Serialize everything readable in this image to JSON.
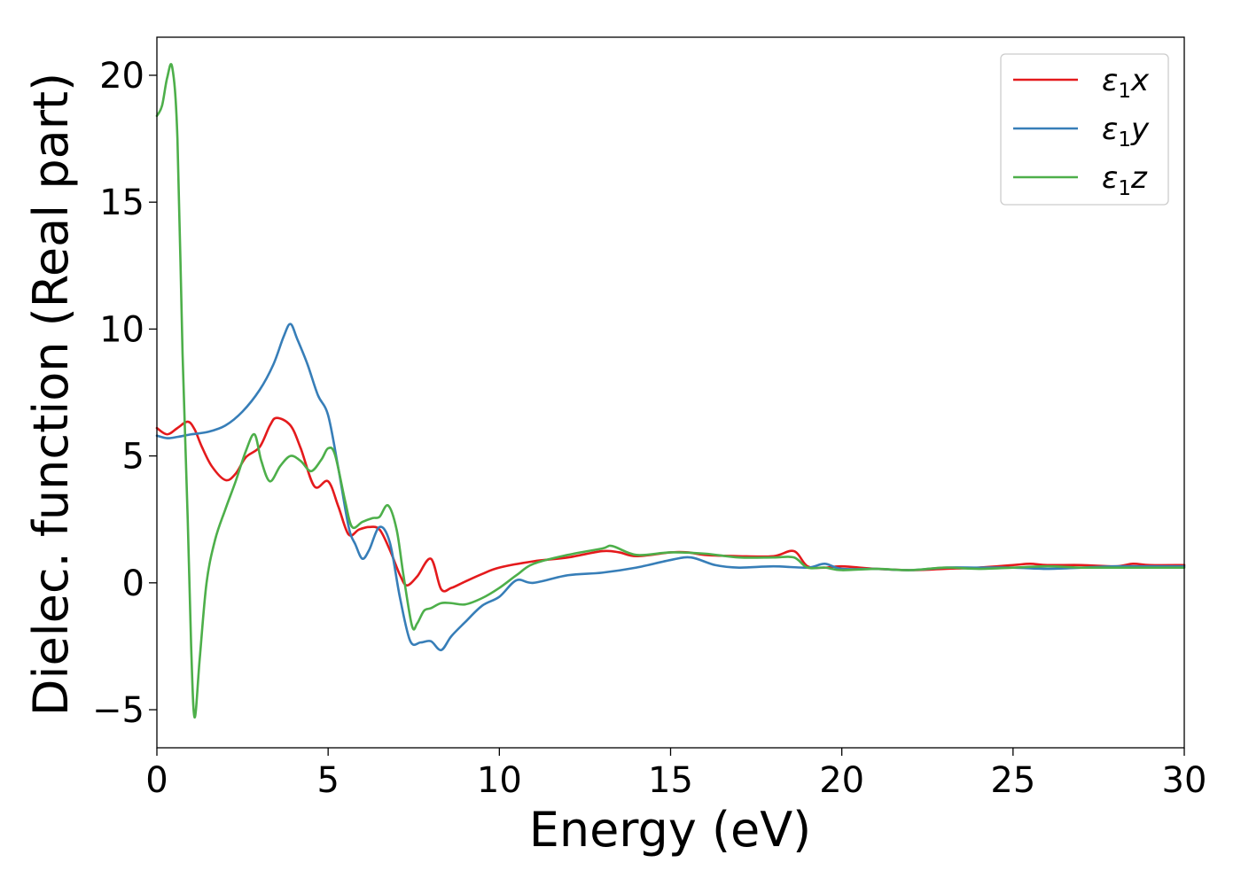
{
  "chart_data": {
    "type": "line",
    "title": "",
    "xlabel": "Energy (eV)",
    "ylabel": "Dielec. function (Real part)",
    "xlim": [
      0,
      30
    ],
    "ylim": [
      -6.5,
      21.5
    ],
    "xticks": [
      0,
      5,
      10,
      15,
      20,
      25,
      30
    ],
    "xtick_labels": [
      "0",
      "5",
      "10",
      "15",
      "20",
      "25",
      "30"
    ],
    "yticks": [
      -5,
      0,
      5,
      10,
      15,
      20
    ],
    "ytick_labels": [
      "−5",
      "0",
      "5",
      "10",
      "15",
      "20"
    ],
    "grid": false,
    "legend_position": "top-right",
    "series": [
      {
        "name": "ε₁x",
        "legend_label": {
          "main": "ε",
          "sub": "1",
          "tail": "x"
        },
        "color": "#e41a1c",
        "x": [
          0,
          0.3,
          0.6,
          0.9,
          1.1,
          1.3,
          1.6,
          2.0,
          2.3,
          2.6,
          3.0,
          3.3,
          3.5,
          3.9,
          4.2,
          4.6,
          5.0,
          5.3,
          5.6,
          5.9,
          6.2,
          6.5,
          6.8,
          7.1,
          7.3,
          7.6,
          8.0,
          8.3,
          8.6,
          9.0,
          9.5,
          10.0,
          11.0,
          12.0,
          13.0,
          13.5,
          14.0,
          15.0,
          15.5,
          16.0,
          17.0,
          18.0,
          18.6,
          19.0,
          19.5,
          20.0,
          21.0,
          22.0,
          23.0,
          24.0,
          25.0,
          25.5,
          26.0,
          27.0,
          28.0,
          28.5,
          29.0,
          30.0
        ],
        "y": [
          6.1,
          5.85,
          6.1,
          6.35,
          6.05,
          5.4,
          4.6,
          4.05,
          4.3,
          4.95,
          5.35,
          6.2,
          6.5,
          6.2,
          5.3,
          3.8,
          4.0,
          3.0,
          1.9,
          2.1,
          2.2,
          2.1,
          1.3,
          0.3,
          -0.1,
          0.25,
          0.95,
          -0.25,
          -0.2,
          0.05,
          0.35,
          0.6,
          0.85,
          1.0,
          1.25,
          1.2,
          1.05,
          1.2,
          1.2,
          1.1,
          1.05,
          1.05,
          1.25,
          0.65,
          0.6,
          0.65,
          0.55,
          0.5,
          0.55,
          0.6,
          0.7,
          0.75,
          0.7,
          0.7,
          0.65,
          0.75,
          0.7,
          0.7
        ]
      },
      {
        "name": "ε₁y",
        "legend_label": {
          "main": "ε",
          "sub": "1",
          "tail": "y"
        },
        "color": "#377eb8",
        "x": [
          0,
          0.3,
          0.6,
          1.0,
          1.5,
          2.0,
          2.5,
          3.0,
          3.4,
          3.7,
          3.9,
          4.1,
          4.4,
          4.7,
          5.0,
          5.3,
          5.6,
          5.8,
          6.0,
          6.2,
          6.5,
          6.8,
          7.1,
          7.4,
          7.7,
          8.0,
          8.3,
          8.6,
          9.0,
          9.5,
          10.0,
          10.5,
          11.0,
          12.0,
          13.0,
          14.0,
          15.0,
          15.6,
          16.3,
          17.0,
          18.0,
          19.0,
          19.5,
          20.0,
          21.0,
          22.0,
          23.0,
          24.0,
          25.0,
          26.0,
          27.0,
          28.0,
          29.0,
          30.0
        ],
        "y": [
          5.8,
          5.7,
          5.75,
          5.85,
          5.95,
          6.2,
          6.75,
          7.6,
          8.6,
          9.7,
          10.2,
          9.6,
          8.6,
          7.4,
          6.6,
          4.5,
          2.2,
          1.5,
          0.95,
          1.3,
          2.2,
          1.6,
          -0.6,
          -2.3,
          -2.35,
          -2.3,
          -2.65,
          -2.1,
          -1.55,
          -0.9,
          -0.55,
          0.1,
          0.0,
          0.3,
          0.4,
          0.6,
          0.9,
          1.0,
          0.7,
          0.6,
          0.65,
          0.6,
          0.75,
          0.55,
          0.55,
          0.5,
          0.6,
          0.6,
          0.6,
          0.55,
          0.6,
          0.65,
          0.65,
          0.65
        ]
      },
      {
        "name": "ε₁z",
        "legend_label": {
          "main": "ε",
          "sub": "1",
          "tail": "z"
        },
        "color": "#4daf4a",
        "x": [
          0,
          0.15,
          0.3,
          0.45,
          0.6,
          0.75,
          0.9,
          1.0,
          1.1,
          1.25,
          1.45,
          1.7,
          2.0,
          2.3,
          2.6,
          2.85,
          3.05,
          3.3,
          3.6,
          3.9,
          4.2,
          4.5,
          4.8,
          5.0,
          5.2,
          5.5,
          5.7,
          6.0,
          6.3,
          6.5,
          6.75,
          7.0,
          7.2,
          7.45,
          7.6,
          7.8,
          8.0,
          8.3,
          8.6,
          9.0,
          9.5,
          10.0,
          10.5,
          11.0,
          12.0,
          13.0,
          13.3,
          14.0,
          15.0,
          16.0,
          17.0,
          18.0,
          18.6,
          19.0,
          19.5,
          20.0,
          21.0,
          22.0,
          23.0,
          24.0,
          25.0,
          26.0,
          27.0,
          28.0,
          29.0,
          30.0
        ],
        "y": [
          18.4,
          18.8,
          19.9,
          20.3,
          17.5,
          9.0,
          2.5,
          -2.5,
          -5.3,
          -3.0,
          0.0,
          1.7,
          2.9,
          4.0,
          5.2,
          5.85,
          4.8,
          4.0,
          4.6,
          5.0,
          4.8,
          4.4,
          4.85,
          5.3,
          5.05,
          3.2,
          2.2,
          2.4,
          2.55,
          2.6,
          3.05,
          2.1,
          0.3,
          -1.7,
          -1.6,
          -1.1,
          -1.0,
          -0.8,
          -0.8,
          -0.85,
          -0.6,
          -0.2,
          0.3,
          0.75,
          1.1,
          1.35,
          1.45,
          1.1,
          1.2,
          1.15,
          1.0,
          1.0,
          1.0,
          0.6,
          0.6,
          0.5,
          0.55,
          0.5,
          0.6,
          0.55,
          0.6,
          0.65,
          0.6,
          0.6,
          0.6,
          0.6
        ]
      }
    ]
  }
}
